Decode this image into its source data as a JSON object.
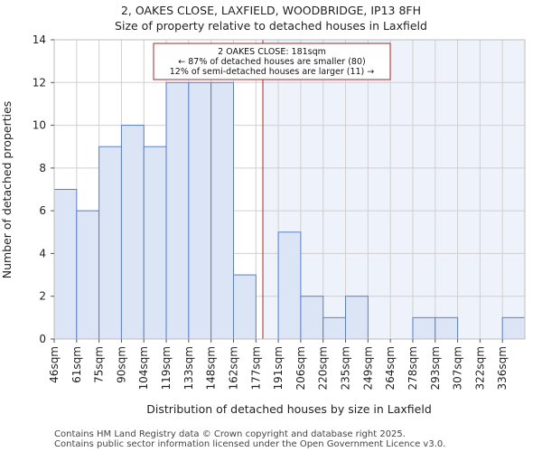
{
  "chart_data": {
    "type": "bar",
    "title_line1": "2, OAKES CLOSE, LAXFIELD, WOODBRIDGE, IP13 8FH",
    "title_line2": "Size of property relative to detached houses in Laxfield",
    "xlabel": "Distribution of detached houses by size in Laxfield",
    "ylabel": "Number of detached properties",
    "categories": [
      "46sqm",
      "61sqm",
      "75sqm",
      "90sqm",
      "104sqm",
      "119sqm",
      "133sqm",
      "148sqm",
      "162sqm",
      "177sqm",
      "191sqm",
      "206sqm",
      "220sqm",
      "235sqm",
      "249sqm",
      "264sqm",
      "278sqm",
      "293sqm",
      "307sqm",
      "322sqm",
      "336sqm"
    ],
    "values": [
      7,
      6,
      9,
      10,
      9,
      12,
      12,
      12,
      3,
      0,
      5,
      2,
      1,
      2,
      0,
      0,
      1,
      1,
      0,
      0,
      1
    ],
    "ylim": [
      0,
      14
    ],
    "yticks": [
      0,
      2,
      4,
      6,
      8,
      10,
      12,
      14
    ],
    "grid": true,
    "marker": {
      "value_sqm": 181,
      "color": "#a52a2a",
      "highlight_color": "#eef2fb"
    },
    "annotation": {
      "line1": "2 OAKES CLOSE: 181sqm",
      "line2": "← 87% of detached houses are smaller (80)",
      "line3": "12% of semi-detached houses are larger (11) →"
    }
  },
  "footer": {
    "line1": "Contains HM Land Registry data © Crown copyright and database right 2025.",
    "line2": "Contains public sector information licensed under the Open Government Licence v3.0."
  }
}
